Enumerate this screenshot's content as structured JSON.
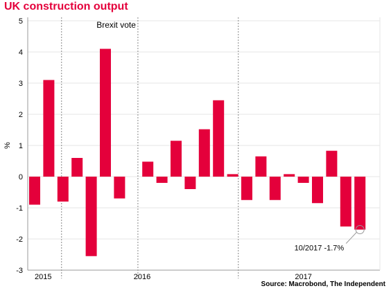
{
  "chart_data": {
    "type": "bar",
    "title": "UK construction output",
    "ylabel": "%",
    "ylim": [
      -3,
      5
    ],
    "yticks": [
      -3,
      -2,
      -1,
      0,
      1,
      2,
      3,
      4,
      5
    ],
    "grid": true,
    "bar_color": "#e4003b",
    "series": [
      {
        "values": [
          -0.9,
          3.1,
          -0.8,
          0.6,
          -2.55,
          4.1,
          -0.7,
          null,
          0.48,
          -0.2,
          1.15,
          -0.4,
          1.52,
          2.45,
          0.08,
          -0.75,
          0.65,
          -0.75,
          0.08,
          -0.2,
          -0.85,
          0.83,
          -1.6,
          -1.7
        ]
      }
    ],
    "year_labels": [
      {
        "label": "2015",
        "at_bar": 0.6
      },
      {
        "label": "2016",
        "at_bar": 7.6
      },
      {
        "label": "2017",
        "at_bar": 19
      }
    ],
    "separators": [
      {
        "after_bar": 1.4
      },
      {
        "after_bar": 6.8
      },
      {
        "after_bar": 13.9
      }
    ],
    "annotations": [
      {
        "text": "Brexit vote",
        "bar": 6.8
      },
      {
        "text": "10/2017 -1.7%",
        "bar": 23,
        "value": -1.7
      }
    ],
    "source": "Source: Macrobond, The Independent"
  }
}
